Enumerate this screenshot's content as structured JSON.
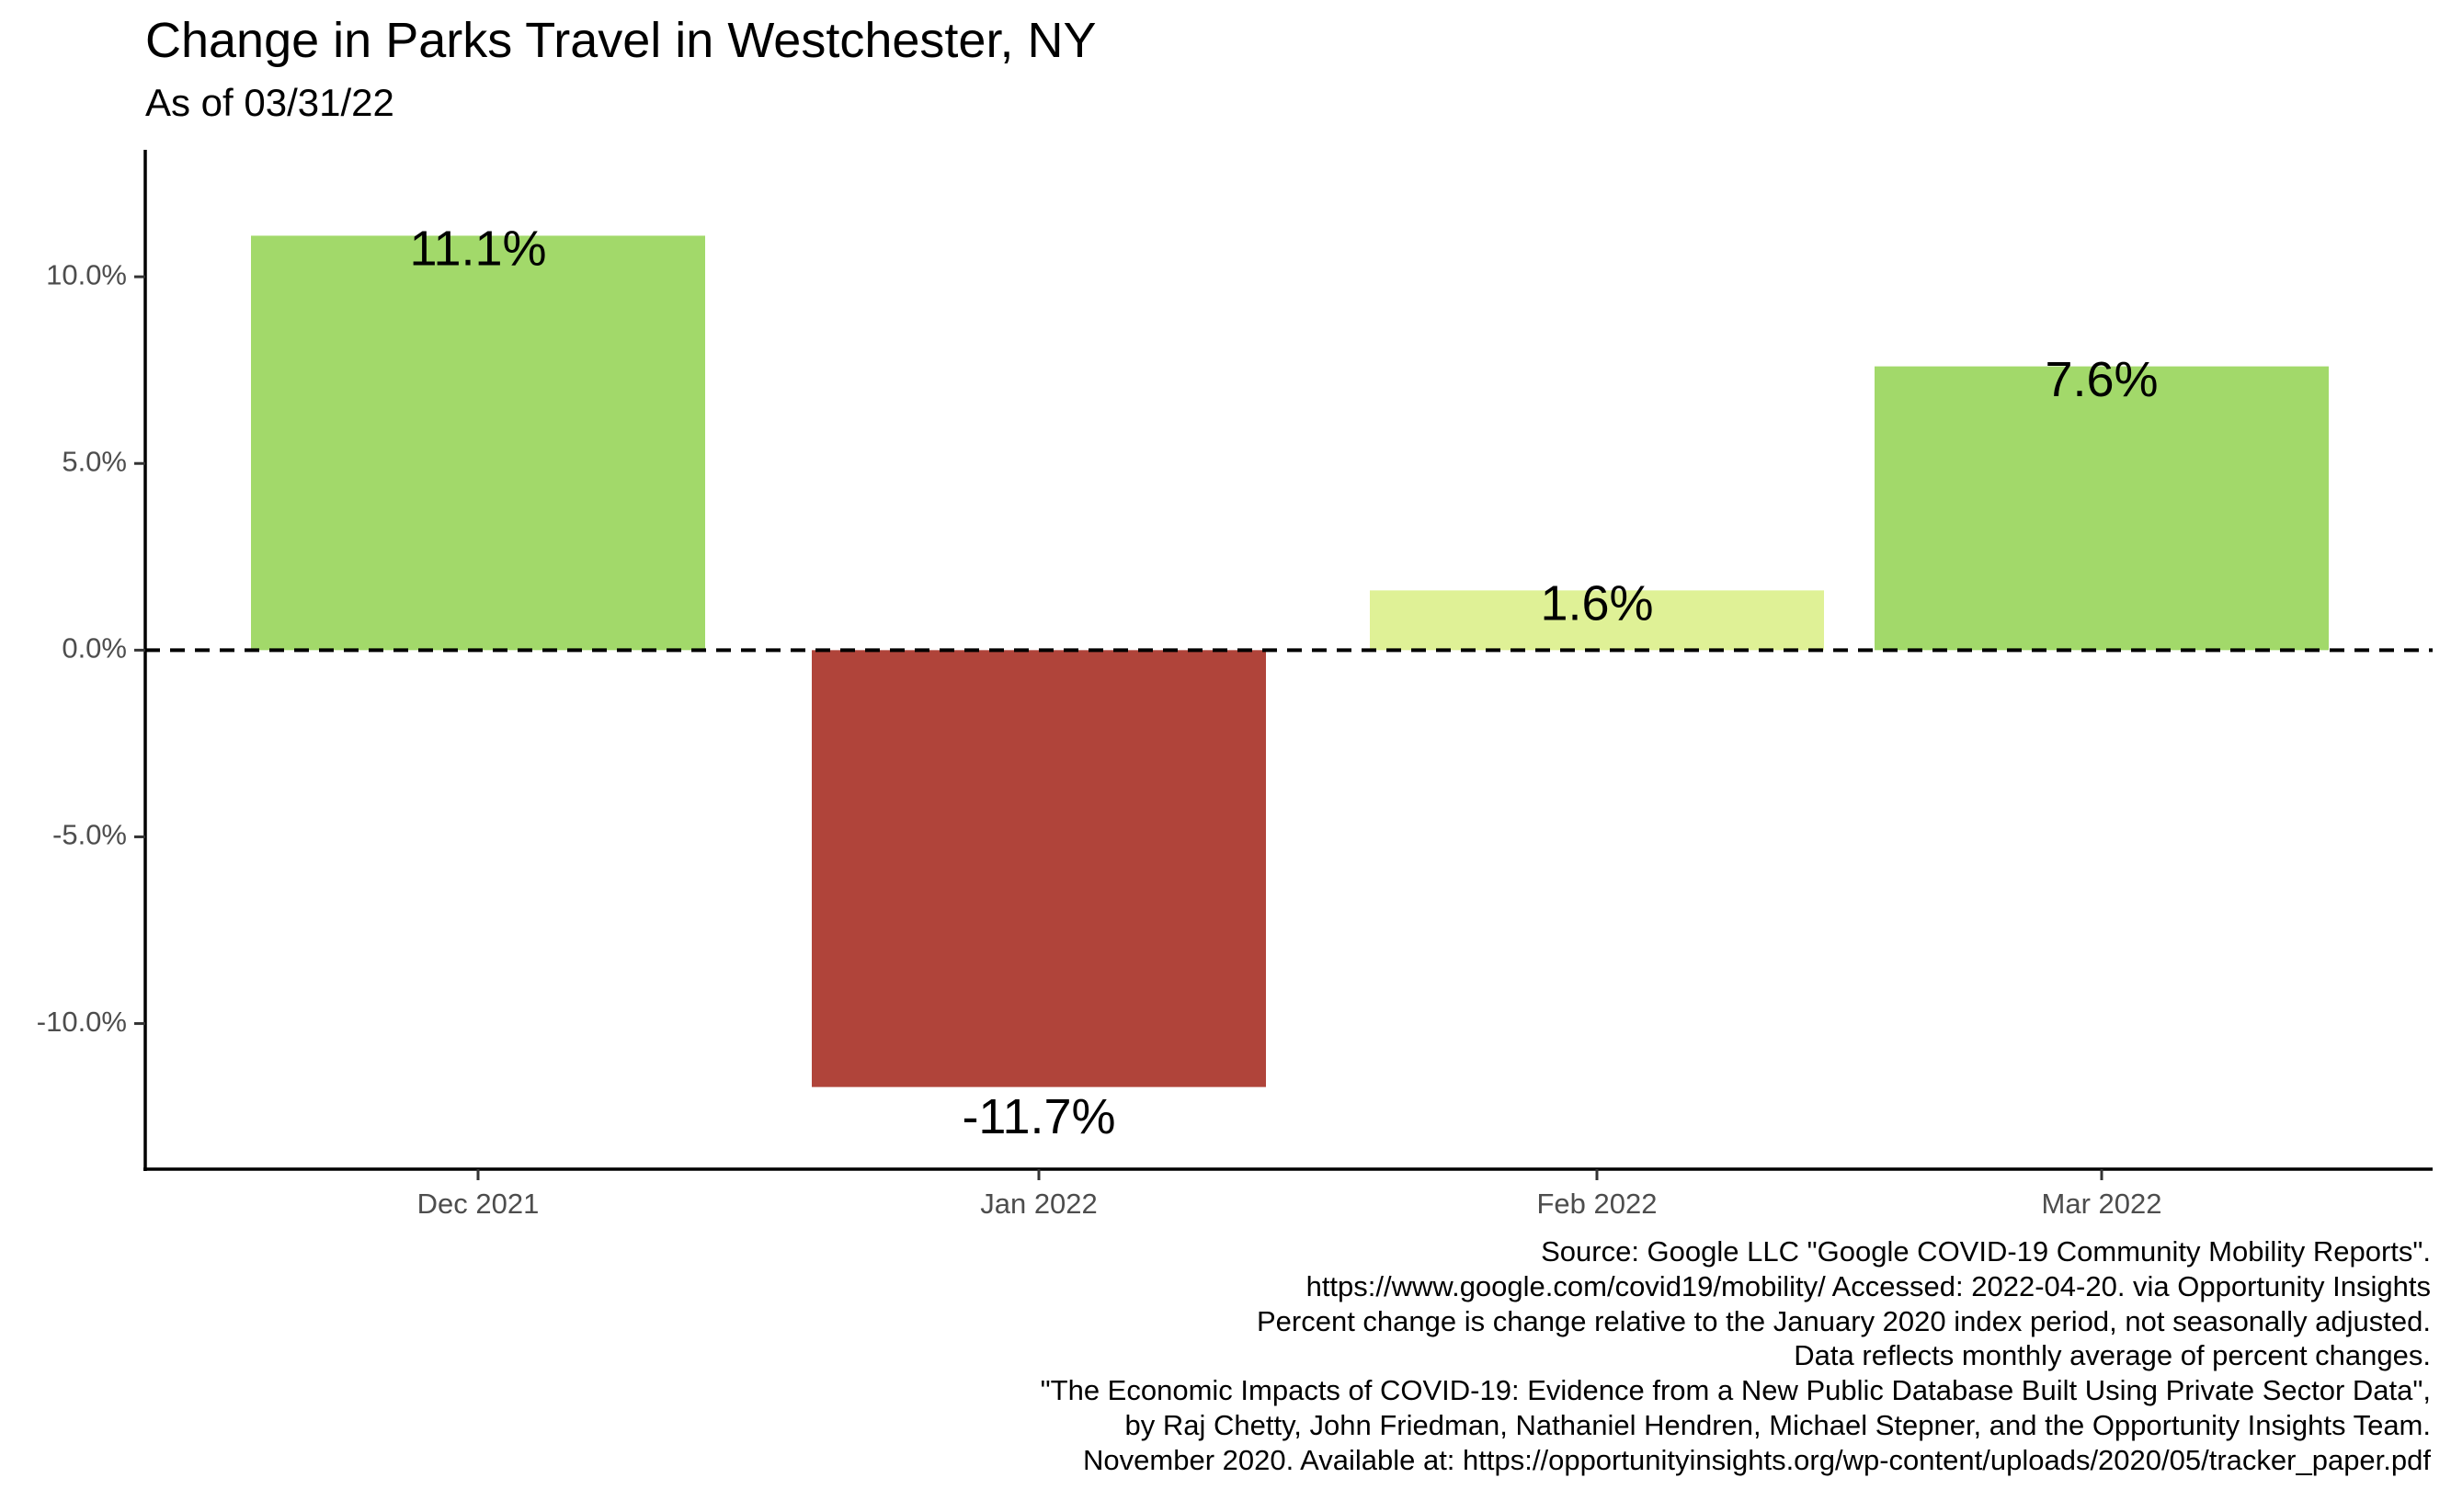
{
  "chart_data": {
    "type": "bar",
    "title": "Change in Parks Travel in Westchester, NY",
    "subtitle": "As of 03/31/22",
    "xlabel": "",
    "ylabel": "",
    "categories": [
      "Dec 2021",
      "Jan 2022",
      "Feb 2022",
      "Mar 2022"
    ],
    "values": [
      11.1,
      -11.7,
      1.6,
      7.6
    ],
    "value_labels": [
      "11.1%",
      "-11.7%",
      "1.6%",
      "7.6%"
    ],
    "bar_colors": [
      "#a2d96a",
      "#b0443a",
      "#dff196",
      "#a2d96a"
    ],
    "ylim": [
      -13.9,
      13.4
    ],
    "yticks": [
      -10,
      -5,
      0,
      5,
      10
    ],
    "ytick_labels": [
      "-10.0%",
      "-5.0%",
      "0.0%",
      "5.0%",
      "10.0%"
    ],
    "reference_line": {
      "y": 0,
      "style": "dashed"
    },
    "grid": false,
    "legend": "none"
  },
  "caption_lines": [
    "Source: Google LLC \"Google COVID-19 Community Mobility Reports\".",
    "https://www.google.com/covid19/mobility/ Accessed: 2022-04-20. via Opportunity Insights",
    "Percent change is change relative to the January 2020 index period, not seasonally adjusted.",
    "Data reflects monthly average of percent changes.",
    "\"The Economic Impacts of COVID-19: Evidence from a New Public Database Built Using Private Sector Data\",",
    "by Raj Chetty, John Friedman, Nathaniel Hendren, Michael Stepner, and the Opportunity Insights Team.",
    "November 2020. Available at: https://opportunityinsights.org/wp-content/uploads/2020/05/tracker_paper.pdf"
  ]
}
